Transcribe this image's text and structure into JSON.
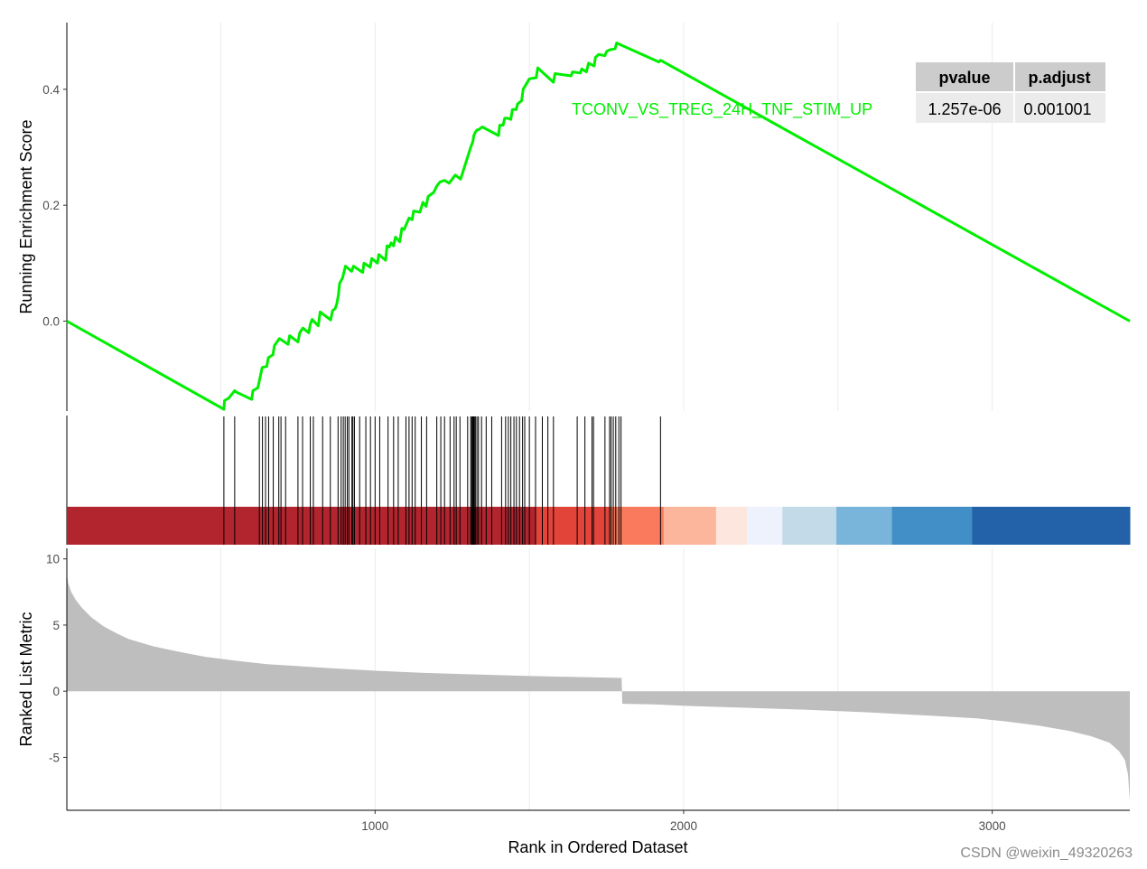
{
  "chart_data": [
    {
      "type": "line",
      "panel": "running-enrichment-score",
      "ylabel": "Running Enrichment Score",
      "xlim": [
        1,
        3446
      ],
      "ylim": [
        -0.155,
        0.515
      ],
      "y_ticks": [
        0.0,
        0.2,
        0.4
      ],
      "y_tick_labels": [
        "0.0",
        "0.2",
        "0.4"
      ],
      "grid": "vertical only",
      "color": "#00ee00",
      "annotation": "TCONV_VS_TREG_24H_TNF_STIM_UP",
      "x": [
        1,
        510,
        512,
        525,
        545,
        549,
        600,
        604,
        620,
        634,
        649,
        654,
        669,
        674,
        690,
        718,
        723,
        750,
        756,
        766,
        785,
        790,
        796,
        816,
        822,
        856,
        862,
        871,
        876,
        881,
        885,
        895,
        904,
        924,
        930,
        960,
        964,
        984,
        989,
        1008,
        1012,
        1034,
        1039,
        1046,
        1052,
        1060,
        1066,
        1080,
        1087,
        1094,
        1110,
        1120,
        1125,
        1145,
        1155,
        1165,
        1172,
        1190,
        1200,
        1210,
        1225,
        1240,
        1260,
        1277,
        1310,
        1317,
        1320,
        1325,
        1331,
        1335,
        1347,
        1400,
        1404,
        1415,
        1420,
        1430,
        1440,
        1445,
        1457,
        1462,
        1475,
        1480,
        1500,
        1522,
        1527,
        1578,
        1583,
        1635,
        1640,
        1665,
        1670,
        1685,
        1692,
        1710,
        1714,
        1725,
        1745,
        1750,
        1760,
        1778,
        1783,
        1790,
        1920,
        1925,
        1935,
        3446
      ],
      "y": [
        0.0,
        -0.152,
        -0.137,
        -0.133,
        -0.12,
        -0.122,
        -0.135,
        -0.12,
        -0.115,
        -0.08,
        -0.078,
        -0.063,
        -0.058,
        -0.042,
        -0.03,
        -0.04,
        -0.025,
        -0.036,
        -0.02,
        -0.012,
        -0.02,
        -0.005,
        0.003,
        -0.008,
        0.016,
        0.002,
        0.018,
        0.022,
        0.03,
        0.045,
        0.065,
        0.075,
        0.095,
        0.086,
        0.095,
        0.084,
        0.1,
        0.093,
        0.108,
        0.1,
        0.115,
        0.105,
        0.13,
        0.128,
        0.135,
        0.13,
        0.145,
        0.137,
        0.16,
        0.158,
        0.178,
        0.175,
        0.19,
        0.188,
        0.205,
        0.198,
        0.215,
        0.222,
        0.233,
        0.24,
        0.243,
        0.238,
        0.252,
        0.245,
        0.3,
        0.31,
        0.32,
        0.326,
        0.33,
        0.33,
        0.335,
        0.32,
        0.338,
        0.338,
        0.35,
        0.35,
        0.348,
        0.365,
        0.365,
        0.375,
        0.38,
        0.4,
        0.418,
        0.42,
        0.437,
        0.412,
        0.427,
        0.423,
        0.43,
        0.428,
        0.435,
        0.43,
        0.445,
        0.44,
        0.455,
        0.46,
        0.458,
        0.465,
        0.468,
        0.47,
        0.48,
        0.478,
        0.447,
        0.45,
        0.447,
        0.0
      ]
    },
    {
      "type": "heatmap",
      "panel": "gene-hits-and-color-bar",
      "hit_positions": [
        510,
        545,
        625,
        635,
        645,
        655,
        670,
        688,
        695,
        710,
        750,
        765,
        790,
        800,
        830,
        855,
        880,
        890,
        897,
        903,
        910,
        915,
        925,
        928,
        933,
        950,
        970,
        985,
        1000,
        1015,
        1042,
        1060,
        1075,
        1100,
        1110,
        1120,
        1130,
        1150,
        1167,
        1200,
        1213,
        1225,
        1243,
        1256,
        1263,
        1275,
        1300,
        1310,
        1313,
        1316,
        1318,
        1320,
        1323,
        1325,
        1330,
        1335,
        1345,
        1360,
        1378,
        1410,
        1423,
        1432,
        1440,
        1450,
        1458,
        1468,
        1478,
        1485,
        1500,
        1520,
        1542,
        1560,
        1578,
        1655,
        1680,
        1703,
        1708,
        1745,
        1760,
        1765,
        1772,
        1780,
        1790,
        1797,
        1925
      ],
      "color_segments": [
        {
          "start": 1,
          "end": 1520,
          "color": "#b2252f"
        },
        {
          "start": 1520,
          "end": 1760,
          "color": "#e2443a"
        },
        {
          "start": 1760,
          "end": 1935,
          "color": "#f97a5c"
        },
        {
          "start": 1935,
          "end": 2105,
          "color": "#fbb69b"
        },
        {
          "start": 2105,
          "end": 2205,
          "color": "#fde6dd"
        },
        {
          "start": 2205,
          "end": 2320,
          "color": "#eef2fc"
        },
        {
          "start": 2320,
          "end": 2495,
          "color": "#c3dae9"
        },
        {
          "start": 2495,
          "end": 2675,
          "color": "#79b4da"
        },
        {
          "start": 2675,
          "end": 2935,
          "color": "#418fc6"
        },
        {
          "start": 2935,
          "end": 3446,
          "color": "#2362a8"
        }
      ]
    },
    {
      "type": "area",
      "panel": "ranked-list-metric",
      "ylabel": "Ranked List Metric",
      "xlabel": "Rank in Ordered Dataset",
      "xlim": [
        1,
        3446
      ],
      "ylim": [
        -9.0,
        10.8
      ],
      "x_ticks": [
        1000,
        2000,
        3000
      ],
      "x_tick_labels": [
        "1000",
        "2000",
        "3000"
      ],
      "y_ticks": [
        -5,
        0,
        5,
        10
      ],
      "y_tick_labels": [
        "-5",
        "0",
        "5",
        "10"
      ],
      "fill": "#bebebe",
      "x": [
        1,
        5,
        15,
        30,
        50,
        80,
        120,
        160,
        200,
        280,
        360,
        450,
        550,
        650,
        750,
        850,
        1000,
        1150,
        1300,
        1450,
        1600,
        1700,
        1799,
        1801,
        1900,
        2000,
        2200,
        2400,
        2600,
        2800,
        2950,
        3050,
        3150,
        3250,
        3320,
        3380,
        3410,
        3430,
        3440,
        3446
      ],
      "y": [
        8.9,
        8.2,
        7.5,
        6.9,
        6.3,
        5.6,
        4.9,
        4.4,
        3.95,
        3.4,
        3.0,
        2.6,
        2.3,
        2.05,
        1.9,
        1.75,
        1.55,
        1.4,
        1.28,
        1.18,
        1.1,
        1.05,
        1.0,
        -0.95,
        -1.0,
        -1.1,
        -1.25,
        -1.4,
        -1.6,
        -1.85,
        -2.05,
        -2.3,
        -2.6,
        -3.0,
        -3.4,
        -3.9,
        -4.5,
        -5.2,
        -6.3,
        -8.3
      ]
    }
  ],
  "stats_table": {
    "headers": [
      "pvalue",
      "p.adjust"
    ],
    "values": [
      "1.257e-06",
      "0.001001"
    ],
    "header_bg": "#cccccc",
    "cell_bg": "#ebebeb"
  },
  "watermark": "CSDN @weixin_49320263"
}
